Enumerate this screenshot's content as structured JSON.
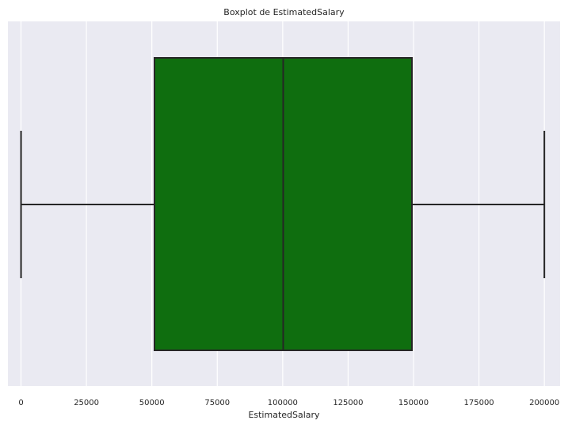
{
  "chart_data": {
    "type": "box",
    "title": "Boxplot de EstimatedSalary",
    "xlabel": "EstimatedSalary",
    "ylabel": "",
    "orientation": "horizontal",
    "xlim": [
      -5000,
      206000
    ],
    "x_ticks": [
      0,
      25000,
      50000,
      75000,
      100000,
      125000,
      150000,
      175000,
      200000
    ],
    "x_tick_labels": [
      "0",
      "25000",
      "50000",
      "75000",
      "100000",
      "125000",
      "150000",
      "175000",
      "200000"
    ],
    "grid": true,
    "series": [
      {
        "whisker_low": 11.58,
        "q1": 51002,
        "median": 100194,
        "q3": 149388,
        "whisker_high": 199992
      }
    ],
    "colors": {
      "box_fill": "#0f6e0f",
      "line": "#262626",
      "plot_background": "#eaeaf2",
      "grid": "#ffffff"
    }
  }
}
